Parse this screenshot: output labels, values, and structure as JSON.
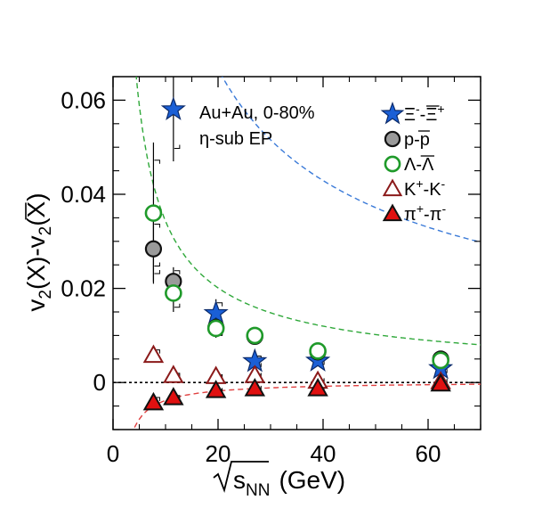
{
  "chart_data": {
    "type": "scatter",
    "title": "",
    "xlabel": "√s_NN (GeV)",
    "xlabel_parts": {
      "root": "s",
      "sub": "NN",
      "unit": "(GeV)"
    },
    "ylabel": "v2(X)-v2(X̄)",
    "xlim": [
      0,
      70
    ],
    "ylim": [
      -0.01,
      0.065
    ],
    "x_ticks": [
      0,
      20,
      40,
      60
    ],
    "x_tick_labels": [
      "0",
      "20",
      "40",
      "60"
    ],
    "y_ticks": [
      0,
      0.02,
      0.04,
      0.06
    ],
    "y_tick_labels": [
      "0",
      "0.02",
      "0.04",
      "0.06"
    ],
    "grid": false,
    "legend_position": "top-right",
    "annotations": [
      "Au+Au,  0-80%",
      "η-sub EP"
    ],
    "series": [
      {
        "name": "Ξ⁻-Ξ̄⁺",
        "label_main": "Ξ",
        "label_sup1": "-",
        "label_mid": "-Ξ",
        "label_sup2": "+",
        "overline_second": true,
        "marker": "star",
        "color": "#1a5fd6",
        "fit_color": "#3a7ad8",
        "x": [
          11.5,
          19.6,
          27,
          39,
          62.4
        ],
        "y": [
          0.058,
          0.0147,
          0.0045,
          0.0046,
          0.003
        ],
        "err": [
          0.011,
          0.003,
          0.0015,
          0.001,
          0.0012
        ],
        "fit": [
          0.42,
          0.6,
          -0.003
        ]
      },
      {
        "name": "p-p̄",
        "label_main": "p-p",
        "marker": "circle-filled",
        "color": "#9a9a9a",
        "fit_color": null,
        "x": [
          7.7,
          11.5,
          19.6,
          27,
          39,
          62.4
        ],
        "y": [
          0.0284,
          0.0215,
          0.0117,
          0.0098,
          0.0065,
          0.005
        ],
        "err": [
          0.007,
          0.003,
          0.002,
          0.001,
          0.0007,
          0.0006
        ]
      },
      {
        "name": "Λ-Λ̄",
        "label_main": "Λ-Λ",
        "marker": "circle-open",
        "color": "#1f9a2a",
        "fit_color": "#2fa83a",
        "x": [
          7.7,
          11.5,
          19.6,
          27,
          39,
          62.4
        ],
        "y": [
          0.036,
          0.019,
          0.0115,
          0.01,
          0.0067,
          0.0047
        ],
        "err": [
          0.015,
          0.004,
          0.002,
          0.001,
          0.0008,
          0.0007
        ],
        "fit": [
          0.21,
          0.8,
          0.001
        ]
      },
      {
        "name": "K⁺-K⁻",
        "label_main": "K",
        "label_sup1": "+",
        "label_mid": "-K",
        "label_sup2": "-",
        "marker": "triangle-open",
        "color": "#8b1a1a",
        "fit_color": null,
        "x": [
          7.7,
          11.5,
          19.6,
          27,
          39,
          62.4
        ],
        "y": [
          0.0058,
          0.0015,
          0.0013,
          0.0015,
          0.0003,
          0.0002
        ],
        "err": [
          0.0015,
          0.0006,
          0.0004,
          0.0003,
          0.0002,
          0.0002
        ]
      },
      {
        "name": "π⁺-π⁻",
        "label_main": "π",
        "label_sup1": "+",
        "label_mid": "-π",
        "label_sup2": "-",
        "marker": "triangle-filled",
        "color": "#e01010",
        "fit_color": "#e04040",
        "x": [
          7.7,
          11.5,
          19.6,
          27,
          39,
          62.4
        ],
        "y": [
          -0.0043,
          -0.0032,
          -0.0017,
          -0.0013,
          -0.0013,
          -0.0003
        ],
        "err": [
          0.0015,
          0.0006,
          0.0003,
          0.0002,
          0.0002,
          0.0002
        ],
        "fit": [
          -0.04,
          1.0,
          0.0002
        ]
      }
    ],
    "zero_line": true
  }
}
